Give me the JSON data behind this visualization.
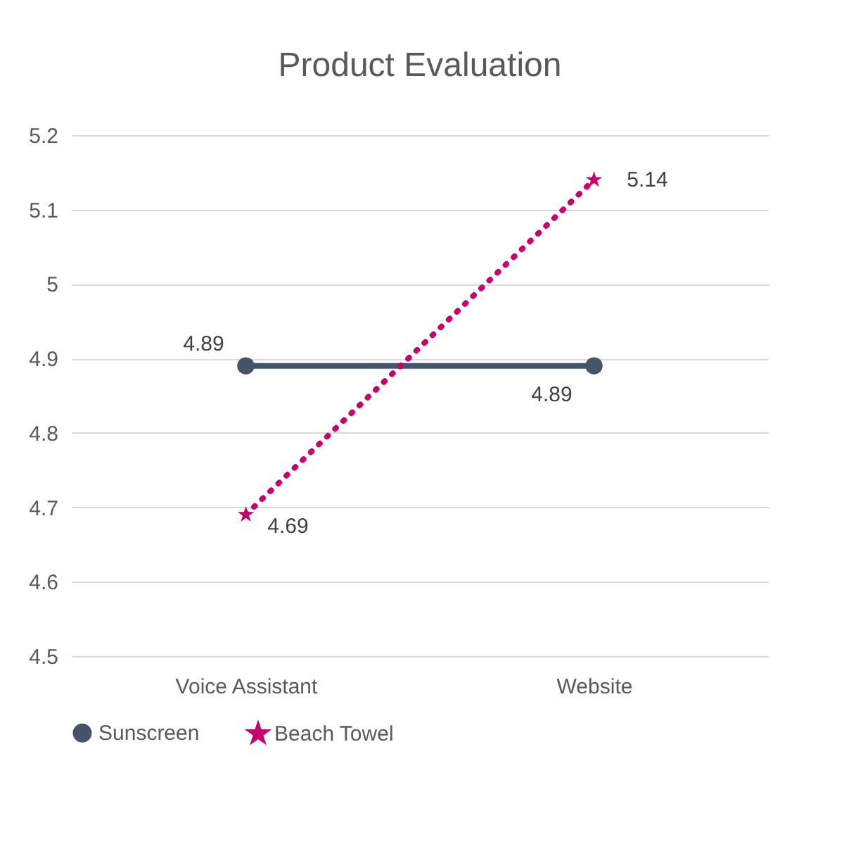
{
  "chart_data": {
    "type": "line",
    "title": "Product Evaluation",
    "categories": [
      "Voice Assistant",
      "Website"
    ],
    "series": [
      {
        "name": "Sunscreen",
        "color": "#44546a",
        "values": [
          4.89,
          4.89
        ],
        "marker": "circle",
        "line_style": "solid"
      },
      {
        "name": "Beach Towel",
        "color": "#c8006e",
        "values": [
          4.69,
          5.14
        ],
        "marker": "star",
        "line_style": "dotted"
      }
    ],
    "ylim": [
      4.5,
      5.2
    ],
    "yticks": [
      4.5,
      4.6,
      4.7,
      4.8,
      4.9,
      5,
      5.1,
      5.2
    ],
    "grid": "y",
    "legend": "bottom",
    "data_labels": true
  }
}
